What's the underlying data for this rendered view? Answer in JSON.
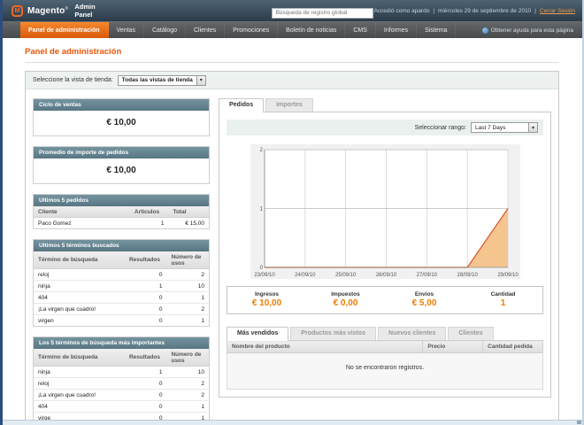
{
  "header": {
    "logo_word": "Magento",
    "logo_mark": "®",
    "logo_sub": "Admin Panel",
    "logo_monogram": "M",
    "search_placeholder": "Búsqueda de registro global",
    "logged_in": "Accedió como apardo",
    "sep1": "|",
    "date": "miércoles 29 de septiembre de 2010",
    "sep2": "|",
    "logout_label": "Cerrar Sesión"
  },
  "nav": {
    "items": [
      {
        "label": "Panel de administración",
        "active": true
      },
      {
        "label": "Ventas",
        "active": false
      },
      {
        "label": "Catálogo",
        "active": false
      },
      {
        "label": "Clientes",
        "active": false
      },
      {
        "label": "Promociones",
        "active": false
      },
      {
        "label": "Boletín de noticias",
        "active": false
      },
      {
        "label": "CMS",
        "active": false
      },
      {
        "label": "Informes",
        "active": false
      },
      {
        "label": "Sistema",
        "active": false
      }
    ],
    "help_label": "Obtener ayuda para esta página"
  },
  "page": {
    "title": "Panel de administración"
  },
  "storeview": {
    "label": "Seleccione la vista de tienda:",
    "selected": "Todas las vistas de tienda",
    "arrow": "▾"
  },
  "sidebar": {
    "lifetime_sales": {
      "title": "Ciclo de ventas",
      "value": "€ 10,00"
    },
    "average_orders": {
      "title": "Promedio de importe de pedidos",
      "value": "€ 10,00"
    },
    "last_orders": {
      "title": "Ultimos 5 pedidos",
      "headers": [
        "Cliente",
        "Articulos",
        "Total"
      ],
      "rows": [
        [
          "Paco Gomez",
          "1",
          "€ 15,00"
        ]
      ]
    },
    "last_search_terms": {
      "title": "Ultimos 5 términos buscados",
      "headers": [
        "Término de búsqueda",
        "Resultados",
        "Número de usos"
      ],
      "rows": [
        [
          "reloj",
          "0",
          "2"
        ],
        [
          "ninja",
          "1",
          "10"
        ],
        [
          "404",
          "0",
          "1"
        ],
        [
          "¡La virgen que cuadro!",
          "0",
          "2"
        ],
        [
          "virgen",
          "0",
          "1"
        ]
      ]
    },
    "top_search_terms": {
      "title": "Los 5 términos de búsqueda más importantes",
      "headers": [
        "Término de búsqueda",
        "Resultados",
        "Número de usos"
      ],
      "rows": [
        [
          "ninja",
          "1",
          "10"
        ],
        [
          "reloj",
          "0",
          "2"
        ],
        [
          "¡La virgen que cuadro!",
          "0",
          "2"
        ],
        [
          "404",
          "0",
          "1"
        ],
        [
          "virge",
          "0",
          "1"
        ]
      ]
    }
  },
  "main": {
    "tabs": [
      {
        "label": "Pedidos",
        "active": true
      },
      {
        "label": "Importes",
        "active": false
      }
    ],
    "range_label": "Seleccionar rango:",
    "range_value": "Last 7 Days",
    "range_arrow": "▾",
    "totals": [
      {
        "label": "Ingresos",
        "value": "€ 10,00"
      },
      {
        "label": "Impuestos",
        "value": "€ 0,00"
      },
      {
        "label": "Envios",
        "value": "€ 5,00"
      },
      {
        "label": "Cantidad",
        "value": "1"
      }
    ],
    "bottom_tabs": [
      {
        "label": "Más vendidos",
        "active": true
      },
      {
        "label": "Productos más vistos",
        "active": false
      },
      {
        "label": "Nuevos clientes",
        "active": false
      },
      {
        "label": "Clientes",
        "active": false
      }
    ],
    "products_table": {
      "headers": [
        "Nombre del producto",
        "Precio",
        "Cantidad pedida"
      ],
      "empty_text": "No se encontraron registros."
    }
  },
  "chart_data": {
    "type": "area",
    "x": [
      "23/09/10",
      "24/09/10",
      "25/09/10",
      "26/09/10",
      "27/09/10",
      "28/09/10",
      "29/09/10"
    ],
    "values": [
      0,
      0,
      0,
      0,
      0,
      0,
      1
    ],
    "title": "",
    "xlabel": "",
    "ylabel": "",
    "ylim": [
      0,
      2
    ],
    "yticks": [
      0,
      1,
      2
    ],
    "grid": true,
    "legend": "none",
    "line_color": "#d9532b",
    "fill_color": "#f5c58f",
    "plot_bg": "#ffffff",
    "outer_bg": "#f1f1f1"
  },
  "colors": {
    "accent_orange": "#e65505",
    "value_orange": "#f07c00",
    "card_header_teal": "#5f7d8c",
    "nav_active_orange": "#e96712",
    "header_slate": "#33414e"
  }
}
